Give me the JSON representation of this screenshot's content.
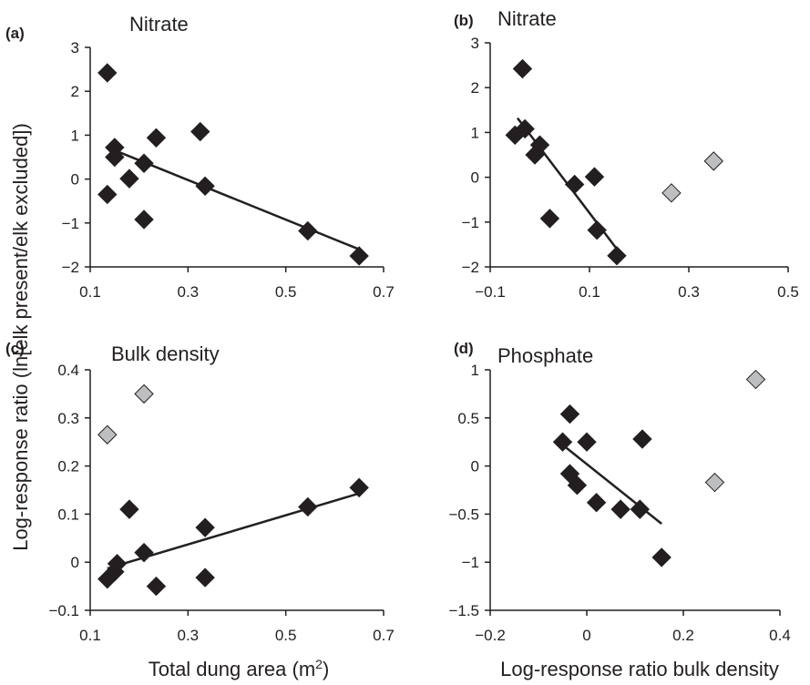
{
  "figure": {
    "ylabel": "Log-response ratio (ln[elk present/elk excluded])",
    "xlabel_left": "Total dung area (m",
    "xlabel_left_sup": "2",
    "xlabel_left_end": ")",
    "xlabel_right": "Log-response ratio bulk density"
  },
  "chart_data": [
    {
      "type": "scatter",
      "panel": "(a)",
      "title": "Nitrate",
      "xlim": [
        0.1,
        0.7
      ],
      "ylim": [
        -2,
        3
      ],
      "xticks": [
        "0.1",
        "0.3",
        "0.5",
        "0.7"
      ],
      "yticks": [
        "−2",
        "−1",
        "0",
        "1",
        "2",
        "3"
      ],
      "xtickvals": [
        0.1,
        0.3,
        0.5,
        0.7
      ],
      "ytickvals": [
        -2,
        -1,
        0,
        1,
        2,
        3
      ],
      "series": [
        {
          "color": "#231f20",
          "points": [
            [
              0.135,
              2.42
            ],
            [
              0.135,
              -0.35
            ],
            [
              0.15,
              0.72
            ],
            [
              0.15,
              0.5
            ],
            [
              0.18,
              0.01
            ],
            [
              0.21,
              0.36
            ],
            [
              0.21,
              -0.92
            ],
            [
              0.235,
              0.94
            ],
            [
              0.325,
              1.08
            ],
            [
              0.335,
              -0.16
            ],
            [
              0.545,
              -1.18
            ],
            [
              0.65,
              -1.75
            ]
          ]
        }
      ],
      "trendline": [
        [
          0.14,
          0.7
        ],
        [
          0.65,
          -1.6
        ]
      ],
      "grid": false
    },
    {
      "type": "scatter",
      "panel": "(b)",
      "title": "Nitrate",
      "xlim": [
        -0.1,
        0.5
      ],
      "ylim": [
        -2,
        3
      ],
      "xticks": [
        "−0.1",
        "0.1",
        "0.3",
        "0.5"
      ],
      "yticks": [
        "−2",
        "−1",
        "0",
        "1",
        "2",
        "3"
      ],
      "xtickvals": [
        -0.1,
        0.1,
        0.3,
        0.5
      ],
      "ytickvals": [
        -2,
        -1,
        0,
        1,
        2,
        3
      ],
      "series": [
        {
          "color": "#231f20",
          "points": [
            [
              -0.035,
              2.42
            ],
            [
              -0.05,
              0.94
            ],
            [
              -0.03,
              1.08
            ],
            [
              -0.01,
              0.5
            ],
            [
              0.0,
              0.72
            ],
            [
              0.02,
              -0.92
            ],
            [
              0.07,
              -0.16
            ],
            [
              0.11,
              0.01
            ],
            [
              0.115,
              -1.18
            ],
            [
              0.155,
              -1.75
            ]
          ]
        },
        {
          "color": "#bcbec0",
          "points": [
            [
              0.265,
              -0.35
            ],
            [
              0.35,
              0.36
            ]
          ]
        }
      ],
      "trendline": [
        [
          -0.045,
          1.32
        ],
        [
          0.155,
          -1.6
        ]
      ],
      "grid": false
    },
    {
      "type": "scatter",
      "panel": "(c)",
      "title": "Bulk density",
      "xlim": [
        0.1,
        0.7
      ],
      "ylim": [
        -0.1,
        0.4
      ],
      "xticks": [
        "0.1",
        "0.3",
        "0.5",
        "0.7"
      ],
      "yticks": [
        "−0.1",
        "0",
        "0.1",
        "0.2",
        "0.3",
        "0.4"
      ],
      "xtickvals": [
        0.1,
        0.3,
        0.5,
        0.7
      ],
      "ytickvals": [
        -0.1,
        0,
        0.1,
        0.2,
        0.3,
        0.4
      ],
      "series": [
        {
          "color": "#231f20",
          "points": [
            [
              0.135,
              -0.035
            ],
            [
              0.15,
              -0.02
            ],
            [
              0.155,
              -0.003
            ],
            [
              0.18,
              0.11
            ],
            [
              0.21,
              0.02
            ],
            [
              0.235,
              -0.05
            ],
            [
              0.335,
              0.072
            ],
            [
              0.335,
              -0.032
            ],
            [
              0.545,
              0.115
            ],
            [
              0.65,
              0.155
            ]
          ]
        },
        {
          "color": "#bcbec0",
          "points": [
            [
              0.135,
              0.265
            ],
            [
              0.21,
              0.35
            ]
          ]
        }
      ],
      "trendline": [
        [
          0.135,
          -0.013
        ],
        [
          0.65,
          0.143
        ]
      ],
      "grid": false
    },
    {
      "type": "scatter",
      "panel": "(d)",
      "title": "Phosphate",
      "xlim": [
        -0.2,
        0.4
      ],
      "ylim": [
        -1.5,
        1
      ],
      "xticks": [
        "−0.2",
        "0",
        "0.2",
        "0.4"
      ],
      "yticks": [
        "−1.5",
        "−1",
        "−0.5",
        "0",
        "0.5",
        "1"
      ],
      "xtickvals": [
        -0.2,
        0,
        0.2,
        0.4
      ],
      "ytickvals": [
        -1.5,
        -1,
        -0.5,
        0,
        0.5,
        1
      ],
      "series": [
        {
          "color": "#231f20",
          "points": [
            [
              -0.05,
              0.25
            ],
            [
              -0.035,
              0.54
            ],
            [
              -0.035,
              -0.08
            ],
            [
              -0.02,
              -0.2
            ],
            [
              0.0,
              0.25
            ],
            [
              0.02,
              -0.38
            ],
            [
              0.07,
              -0.45
            ],
            [
              0.11,
              -0.45
            ],
            [
              0.115,
              0.28
            ],
            [
              0.155,
              -0.95
            ]
          ]
        },
        {
          "color": "#bcbec0",
          "points": [
            [
              0.265,
              -0.17
            ],
            [
              0.35,
              0.9
            ]
          ]
        }
      ],
      "trendline": [
        [
          -0.05,
          0.22
        ],
        [
          0.155,
          -0.6
        ]
      ],
      "grid": false
    }
  ]
}
